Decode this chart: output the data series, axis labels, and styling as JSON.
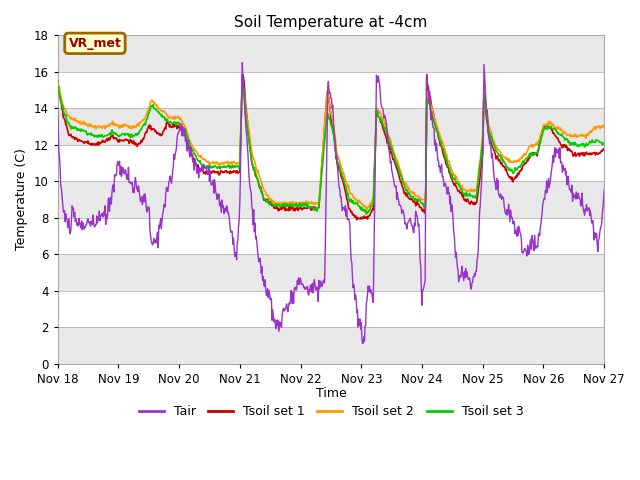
{
  "title": "Soil Temperature at -4cm",
  "xlabel": "Time",
  "ylabel": "Temperature (C)",
  "ylim": [
    0,
    18
  ],
  "yticks": [
    0,
    2,
    4,
    6,
    8,
    10,
    12,
    14,
    16,
    18
  ],
  "x_tick_labels": [
    "Nov 18",
    "Nov 19",
    "Nov 20",
    "Nov 21",
    "Nov 22",
    "Nov 23",
    "Nov 24",
    "Nov 25",
    "Nov 26",
    "Nov 27"
  ],
  "color_tair": "#9933cc",
  "color_tsoil1": "#cc0000",
  "color_tsoil2": "#ff9900",
  "color_tsoil3": "#00cc00",
  "annotation_text": "VR_met",
  "annotation_bg": "#ffffcc",
  "annotation_border": "#996600",
  "background_color": "#ffffff",
  "grid_band_light": "#e8e8e8",
  "grid_band_white": "#ffffff",
  "legend_labels": [
    "Tair",
    "Tsoil set 1",
    "Tsoil set 2",
    "Tsoil set 3"
  ]
}
